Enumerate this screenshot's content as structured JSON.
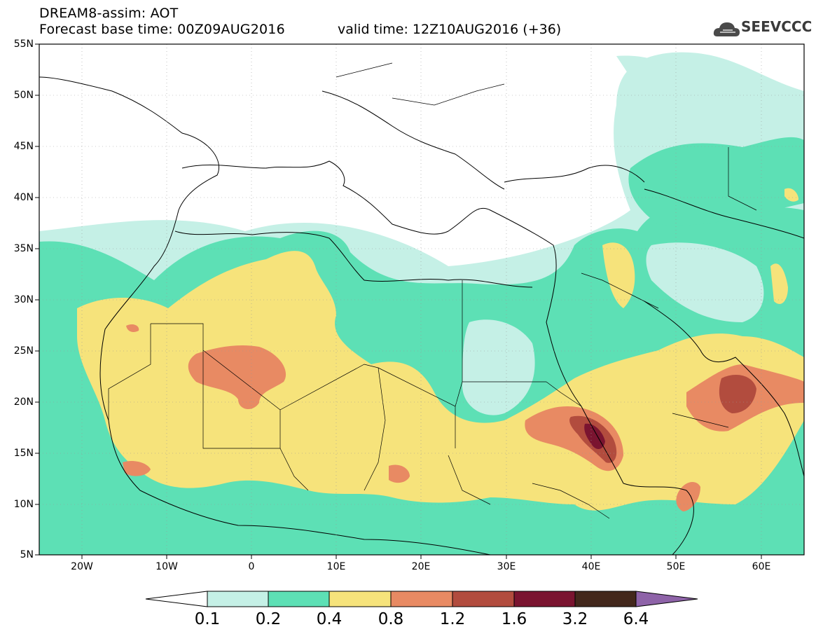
{
  "header": {
    "title_line1": "DREAM8-assim: AOT",
    "title_line2": "Forecast base time: 00Z09AUG2016",
    "valid_time": "valid time: 12Z10AUG2016 (+36)",
    "logo_text": "SEEVCCC",
    "logo_icon": "cloud-logo-icon"
  },
  "map": {
    "lat_labels": [
      "55N",
      "50N",
      "45N",
      "40N",
      "35N",
      "30N",
      "25N",
      "20N",
      "15N",
      "10N",
      "5N"
    ],
    "lon_labels": [
      "20W",
      "10W",
      "0",
      "10E",
      "20E",
      "30E",
      "40E",
      "50E",
      "60E"
    ],
    "extent": {
      "lon_min": -25,
      "lon_max": 65,
      "lat_min": 5,
      "lat_max": 55
    },
    "grid": "dotted",
    "land_color": "#ffffff",
    "border_color": "#000000"
  },
  "colorbar": {
    "labels": [
      "0.1",
      "0.2",
      "0.4",
      "0.8",
      "1.2",
      "1.6",
      "3.2",
      "6.4"
    ],
    "colors": [
      "#c5f0e6",
      "#5de0b5",
      "#f6e37b",
      "#e88a63",
      "#b24c3e",
      "#7a1430",
      "#43281c",
      "#8e63a8"
    ],
    "under_color": "#ffffff"
  }
}
